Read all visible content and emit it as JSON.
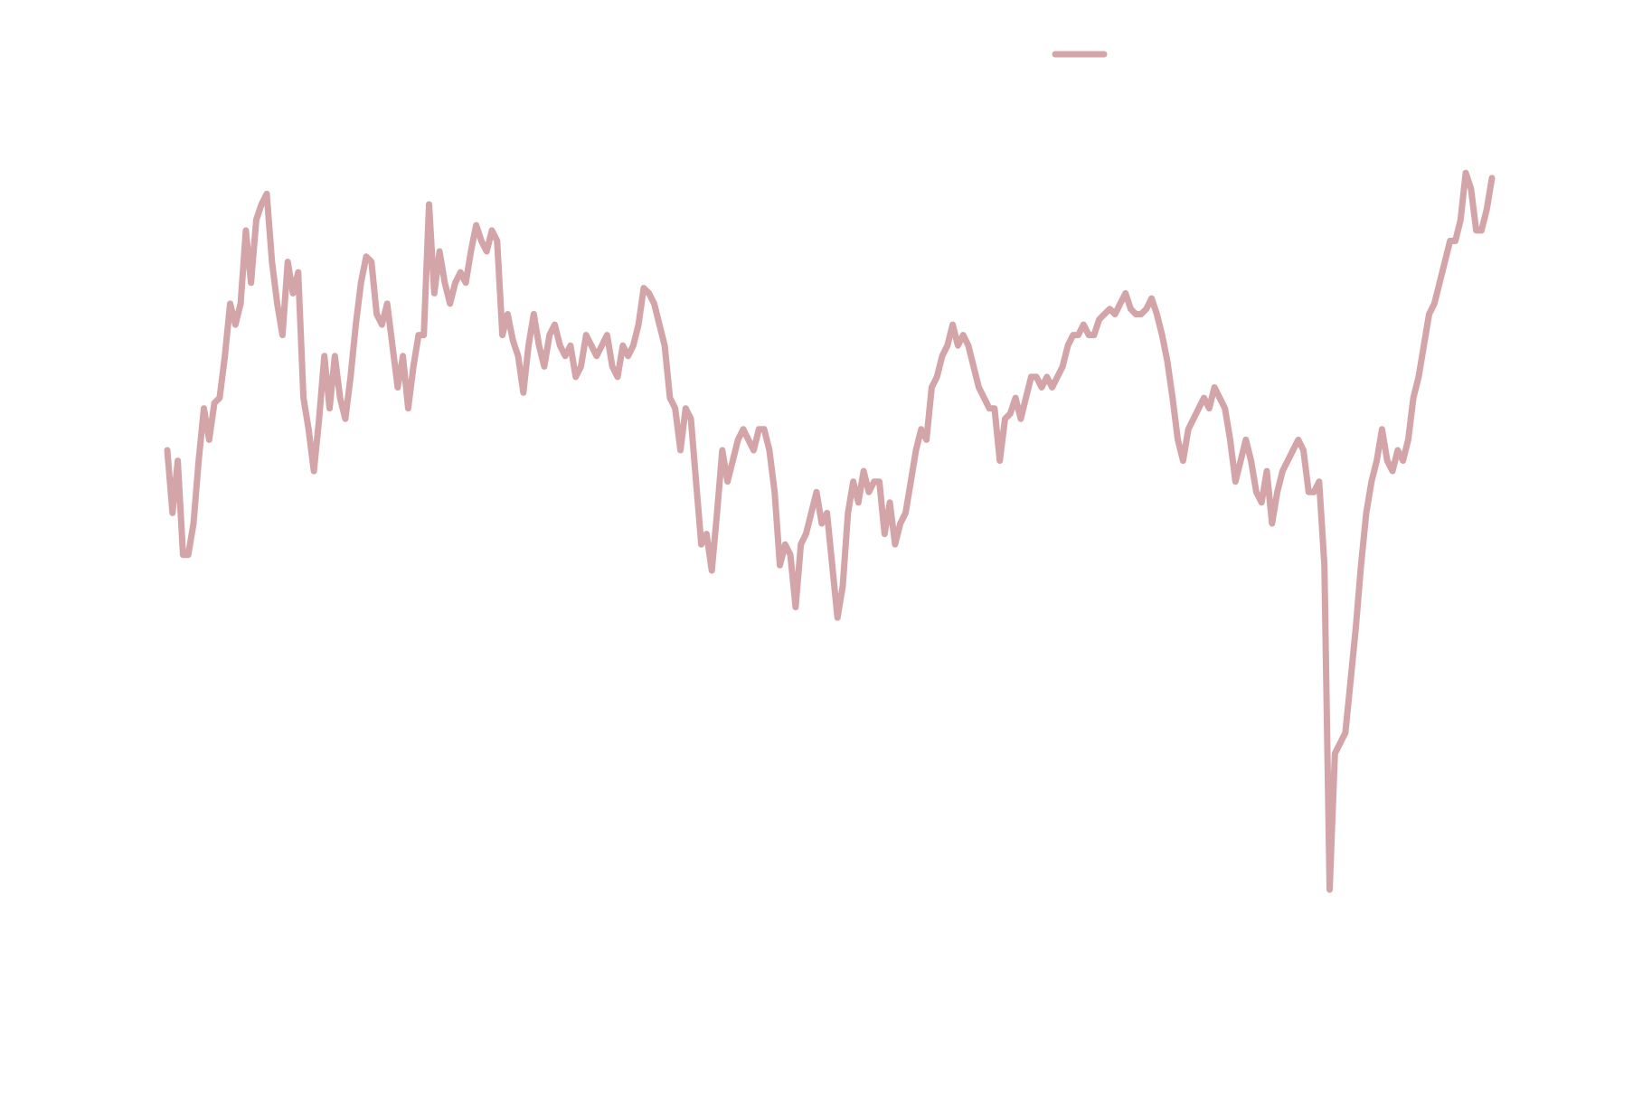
{
  "chart_data": {
    "type": "line",
    "series": [
      {
        "color": "#d4a5a8",
        "values": [
          470,
          410,
          460,
          370,
          370,
          400,
          460,
          510,
          480,
          515,
          520,
          560,
          610,
          590,
          610,
          680,
          630,
          690,
          705,
          715,
          650,
          610,
          580,
          650,
          620,
          640,
          520,
          490,
          450,
          500,
          560,
          510,
          560,
          520,
          500,
          540,
          590,
          630,
          655,
          650,
          600,
          590,
          610,
          570,
          530,
          560,
          510,
          550,
          580,
          580,
          705,
          620,
          660,
          630,
          610,
          630,
          640,
          630,
          660,
          685,
          670,
          660,
          680,
          670,
          580,
          600,
          575,
          560,
          525,
          570,
          600,
          570,
          550,
          580,
          590,
          570,
          560,
          570,
          540,
          550,
          580,
          570,
          560,
          570,
          580,
          550,
          540,
          570,
          560,
          570,
          590,
          625,
          620,
          610,
          590,
          570,
          520,
          510,
          470,
          510,
          500,
          440,
          380,
          390,
          355,
          410,
          470,
          440,
          460,
          480,
          490,
          480,
          470,
          490,
          490,
          470,
          430,
          360,
          380,
          370,
          320,
          380,
          390,
          410,
          430,
          400,
          410,
          360,
          310,
          340,
          410,
          440,
          420,
          450,
          430,
          440,
          440,
          390,
          420,
          380,
          400,
          410,
          440,
          470,
          490,
          480,
          530,
          540,
          560,
          570,
          590,
          570,
          580,
          570,
          550,
          530,
          520,
          510,
          510,
          460,
          500,
          505,
          520,
          500,
          520,
          540,
          540,
          530,
          540,
          530,
          540,
          550,
          570,
          580,
          580,
          590,
          580,
          580,
          595,
          600,
          605,
          600,
          610,
          620,
          605,
          600,
          600,
          605,
          615,
          600,
          580,
          555,
          520,
          480,
          460,
          490,
          500,
          510,
          520,
          510,
          530,
          520,
          510,
          480,
          440,
          460,
          480,
          460,
          430,
          420,
          450,
          400,
          430,
          450,
          460,
          470,
          480,
          470,
          430,
          430,
          440,
          360,
          50,
          180,
          190,
          200,
          250,
          300,
          360,
          410,
          440,
          460,
          490,
          460,
          450,
          470,
          460,
          480,
          520,
          540,
          570,
          600,
          610,
          630,
          650,
          670,
          670,
          690,
          735,
          720,
          680,
          680,
          700,
          730
        ]
      }
    ],
    "ylim": [
      0,
      800
    ],
    "legend": "upper right"
  }
}
